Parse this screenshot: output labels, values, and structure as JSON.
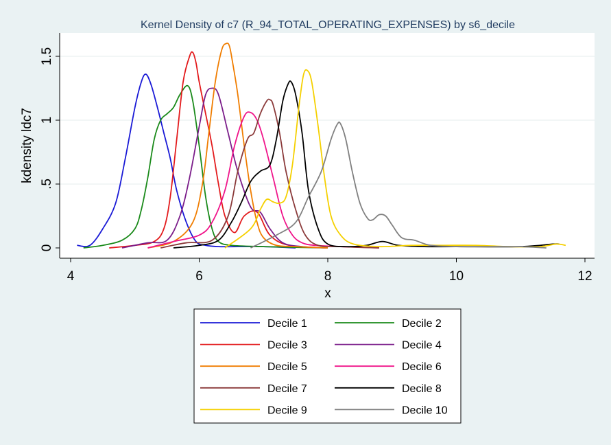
{
  "chart_data": {
    "type": "line",
    "title": "Kernel Density of c7 (R_94_TOTAL_OPERATING_EXPENSES) by s6_decile",
    "xlabel": "x",
    "ylabel": "kdensity ldc7",
    "xlim": [
      4,
      12
    ],
    "ylim": [
      0,
      1.6
    ],
    "xticks": [
      4,
      6,
      8,
      10,
      12
    ],
    "xtick_labels": [
      "4",
      "6",
      "8",
      "10",
      "12"
    ],
    "yticks": [
      0,
      0.5,
      1,
      1.5
    ],
    "ytick_labels": [
      "0",
      ".5",
      "1",
      "1.5"
    ],
    "grid": "horizontal",
    "legend_position": "bottom",
    "series": [
      {
        "name": "Decile 1",
        "color": "#1a1ad6",
        "x": [
          4.1,
          4.3,
          4.5,
          4.7,
          4.85,
          5.0,
          5.1,
          5.17,
          5.25,
          5.35,
          5.45,
          5.55,
          5.65,
          5.8,
          5.95,
          6.1,
          6.3,
          6.6,
          7.0,
          7.5
        ],
        "y": [
          0.02,
          0.02,
          0.15,
          0.35,
          0.7,
          1.1,
          1.3,
          1.36,
          1.28,
          1.1,
          0.9,
          0.7,
          0.45,
          0.2,
          0.05,
          0.02,
          0.01,
          0.01,
          0.01,
          0.0
        ]
      },
      {
        "name": "Decile 2",
        "color": "#1a8a1a",
        "x": [
          4.2,
          4.5,
          4.8,
          5.0,
          5.1,
          5.2,
          5.3,
          5.4,
          5.5,
          5.6,
          5.7,
          5.82,
          5.9,
          6.0,
          6.1,
          6.2,
          6.3,
          6.5,
          7.0,
          8.0
        ],
        "y": [
          0.0,
          0.02,
          0.06,
          0.15,
          0.3,
          0.55,
          0.85,
          1.0,
          1.05,
          1.1,
          1.2,
          1.27,
          1.15,
          0.8,
          0.4,
          0.15,
          0.05,
          0.02,
          0.01,
          0.0
        ]
      },
      {
        "name": "Decile 3",
        "color": "#e31a1c",
        "x": [
          4.6,
          5.0,
          5.3,
          5.45,
          5.55,
          5.65,
          5.75,
          5.85,
          5.9,
          5.95,
          6.0,
          6.1,
          6.2,
          6.3,
          6.4,
          6.55,
          6.7,
          6.9,
          7.1,
          7.4,
          8.0
        ],
        "y": [
          0.0,
          0.02,
          0.05,
          0.15,
          0.4,
          0.85,
          1.3,
          1.5,
          1.53,
          1.45,
          1.3,
          1.05,
          0.8,
          0.5,
          0.25,
          0.12,
          0.25,
          0.28,
          0.1,
          0.02,
          0.0
        ]
      },
      {
        "name": "Decile 4",
        "color": "#7b1d8a",
        "x": [
          4.8,
          5.2,
          5.5,
          5.7,
          5.85,
          6.0,
          6.1,
          6.2,
          6.3,
          6.45,
          6.6,
          6.8,
          6.95,
          7.1,
          7.3,
          7.6,
          8.0
        ],
        "y": [
          0.0,
          0.04,
          0.06,
          0.25,
          0.55,
          0.95,
          1.2,
          1.25,
          1.2,
          0.9,
          0.6,
          0.32,
          0.28,
          0.15,
          0.04,
          0.01,
          0.0
        ]
      },
      {
        "name": "Decile 5",
        "color": "#f07d00",
        "x": [
          5.2,
          5.6,
          5.9,
          6.05,
          6.15,
          6.25,
          6.35,
          6.42,
          6.47,
          6.52,
          6.6,
          6.7,
          6.8,
          6.9,
          7.0,
          7.2,
          7.5,
          8.0
        ],
        "y": [
          0.0,
          0.05,
          0.2,
          0.5,
          0.9,
          1.3,
          1.55,
          1.6,
          1.58,
          1.45,
          1.2,
          0.8,
          0.45,
          0.2,
          0.08,
          0.02,
          0.01,
          0.0
        ]
      },
      {
        "name": "Decile 6",
        "color": "#f0148a",
        "x": [
          5.2,
          5.6,
          6.0,
          6.2,
          6.4,
          6.55,
          6.7,
          6.8,
          6.9,
          7.0,
          7.15,
          7.3,
          7.45,
          7.6,
          7.8,
          8.2,
          8.8
        ],
        "y": [
          0.0,
          0.05,
          0.1,
          0.2,
          0.45,
          0.8,
          1.03,
          1.06,
          1.0,
          0.85,
          0.55,
          0.25,
          0.1,
          0.04,
          0.02,
          0.01,
          0.0
        ]
      },
      {
        "name": "Decile 7",
        "color": "#8b3a3a",
        "x": [
          5.4,
          5.8,
          6.2,
          6.45,
          6.6,
          6.75,
          6.85,
          6.95,
          7.05,
          7.1,
          7.15,
          7.25,
          7.35,
          7.5,
          7.65,
          7.85,
          8.2,
          8.8
        ],
        "y": [
          0.0,
          0.04,
          0.06,
          0.25,
          0.6,
          0.85,
          0.9,
          1.05,
          1.15,
          1.16,
          1.12,
          0.9,
          0.6,
          0.3,
          0.1,
          0.02,
          0.01,
          0.0
        ]
      },
      {
        "name": "Decile 8",
        "color": "#000000",
        "x": [
          5.6,
          6.0,
          6.3,
          6.5,
          6.65,
          6.8,
          6.95,
          7.1,
          7.2,
          7.3,
          7.38,
          7.43,
          7.5,
          7.6,
          7.7,
          7.85,
          8.0,
          8.3,
          8.6,
          8.85,
          9.1,
          9.5,
          10.0,
          11.0,
          11.5,
          11.6
        ],
        "y": [
          0.0,
          0.02,
          0.06,
          0.2,
          0.35,
          0.52,
          0.6,
          0.65,
          0.85,
          1.15,
          1.28,
          1.3,
          1.2,
          0.9,
          0.45,
          0.15,
          0.03,
          0.01,
          0.02,
          0.05,
          0.02,
          0.01,
          0.01,
          0.01,
          0.03,
          0.03
        ]
      },
      {
        "name": "Decile 9",
        "color": "#f5d000",
        "x": [
          6.4,
          6.8,
          6.95,
          7.05,
          7.15,
          7.25,
          7.35,
          7.45,
          7.55,
          7.62,
          7.68,
          7.75,
          7.85,
          7.95,
          8.05,
          8.2,
          8.4,
          8.8,
          9.3,
          9.8,
          10.3,
          10.8,
          11.3,
          11.55,
          11.7
        ],
        "y": [
          0.0,
          0.15,
          0.3,
          0.38,
          0.36,
          0.35,
          0.4,
          0.65,
          1.1,
          1.35,
          1.39,
          1.3,
          0.95,
          0.55,
          0.25,
          0.1,
          0.03,
          0.01,
          0.02,
          0.02,
          0.02,
          0.01,
          0.01,
          0.03,
          0.02
        ]
      },
      {
        "name": "Decile 10",
        "color": "#808080",
        "x": [
          6.8,
          7.2,
          7.5,
          7.7,
          7.9,
          8.05,
          8.15,
          8.2,
          8.28,
          8.38,
          8.5,
          8.62,
          8.7,
          8.8,
          8.9,
          9.0,
          9.15,
          9.35,
          9.6,
          10.0,
          10.5,
          11.0,
          11.4
        ],
        "y": [
          0.0,
          0.1,
          0.2,
          0.4,
          0.6,
          0.85,
          0.97,
          0.97,
          0.85,
          0.6,
          0.35,
          0.23,
          0.22,
          0.26,
          0.25,
          0.18,
          0.08,
          0.06,
          0.02,
          0.01,
          0.01,
          0.01,
          0.0
        ]
      }
    ]
  },
  "legend_entries": [
    {
      "label": "Decile 1",
      "color": "#1a1ad6"
    },
    {
      "label": "Decile 2",
      "color": "#1a8a1a"
    },
    {
      "label": "Decile 3",
      "color": "#e31a1c"
    },
    {
      "label": "Decile 4",
      "color": "#7b1d8a"
    },
    {
      "label": "Decile 5",
      "color": "#f07d00"
    },
    {
      "label": "Decile 6",
      "color": "#f0148a"
    },
    {
      "label": "Decile 7",
      "color": "#8b3a3a"
    },
    {
      "label": "Decile 8",
      "color": "#000000"
    },
    {
      "label": "Decile 9",
      "color": "#f5d000"
    },
    {
      "label": "Decile 10",
      "color": "#808080"
    }
  ],
  "colors": {
    "background": "#eaf2f3",
    "plot_area": "#ffffff",
    "grid": "#e4ecee",
    "title": "#1e3a5f"
  }
}
